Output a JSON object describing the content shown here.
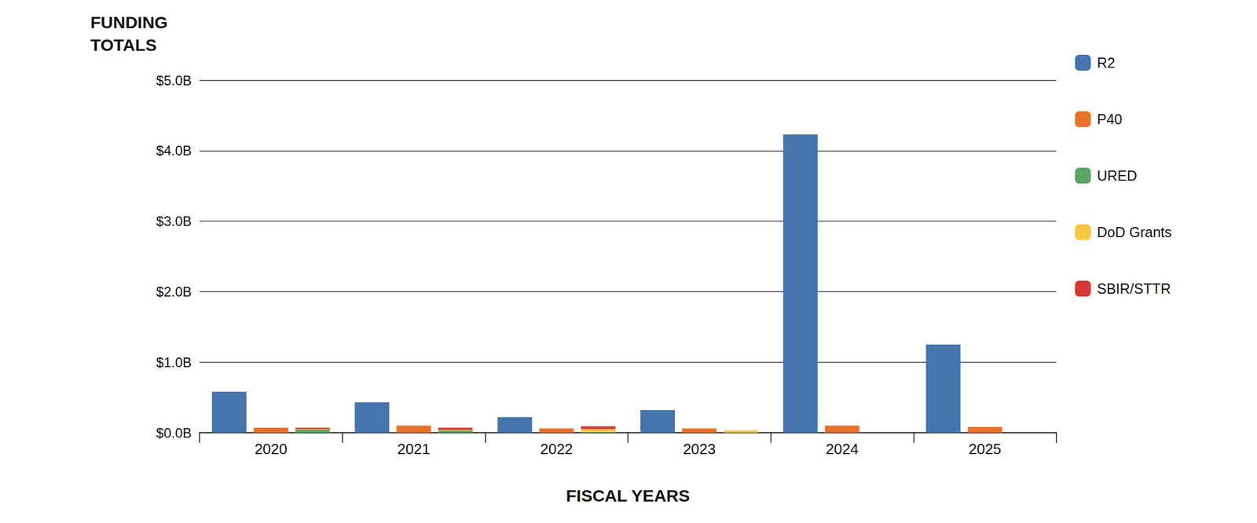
{
  "chart_data": {
    "type": "bar",
    "y_label": "FUNDING TOTALS",
    "x_label": "FISCAL YEARS",
    "categories": [
      "2020",
      "2021",
      "2022",
      "2023",
      "2024",
      "2025"
    ],
    "series": [
      {
        "name": "R2",
        "color": "#4575ad",
        "values": [
          0.58,
          0.43,
          0.22,
          0.32,
          4.23,
          1.25
        ]
      },
      {
        "name": "P40",
        "color": "#e8712b",
        "values": [
          0.07,
          0.1,
          0.06,
          0.06,
          0.1,
          0.08
        ]
      },
      {
        "name": "URED",
        "color": "#5aa469",
        "values": [
          0.04,
          0.03,
          0.01,
          0,
          0,
          0
        ]
      },
      {
        "name": "DoD Grants",
        "color": "#f7c744",
        "values": [
          0.01,
          0.01,
          0.04,
          0.03,
          0,
          0
        ]
      },
      {
        "name": "SBIR/STTR",
        "color": "#d33a35",
        "values": [
          0.02,
          0.03,
          0.04,
          0,
          0,
          0
        ]
      }
    ],
    "stacked": [
      "URED",
      "DoD Grants",
      "SBIR/STTR"
    ],
    "ylim": [
      0,
      5
    ],
    "yticks": [
      {
        "value": 0,
        "label": "$0.0B"
      },
      {
        "value": 1,
        "label": "$1.0B"
      },
      {
        "value": 2,
        "label": "$2.0B"
      },
      {
        "value": 3,
        "label": "$3.0B"
      },
      {
        "value": 4,
        "label": "$4.0B"
      },
      {
        "value": 5,
        "label": "$5.0B"
      }
    ],
    "grid": true,
    "legend": "right"
  }
}
